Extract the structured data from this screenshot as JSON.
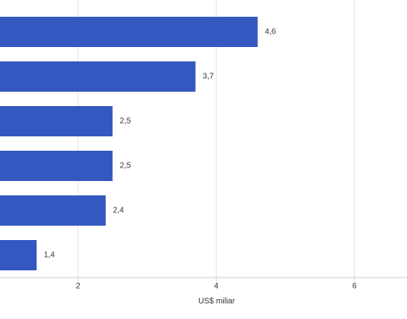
{
  "chart_data": {
    "type": "bar",
    "orientation": "horizontal",
    "categories": [
      null,
      null,
      null,
      null,
      null,
      null
    ],
    "values": [
      4.6,
      3.7,
      2.5,
      2.5,
      2.4,
      1.4
    ],
    "value_labels": [
      "4,6",
      "3,7",
      "2,5",
      "2,5",
      "2,4",
      "1,4"
    ],
    "color": "#3558c0",
    "xlabel": "US$ miliar",
    "xlim": [
      0,
      7
    ],
    "xticks": [
      2,
      4,
      6
    ],
    "grid": true
  }
}
